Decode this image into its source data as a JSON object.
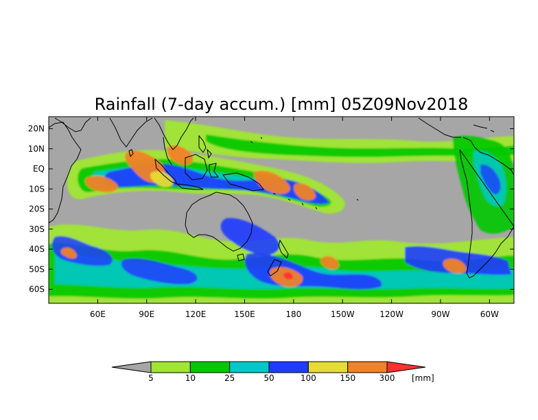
{
  "title": "Rainfall (7-day accum.) [mm] 05Z09Nov2018",
  "map": {
    "ocean_color": "#a6a6a6",
    "coast_color": "#000000",
    "lon_ticks": [
      "60E",
      "90E",
      "120E",
      "150E",
      "180",
      "150W",
      "120W",
      "90W",
      "60W"
    ],
    "lat_ticks": [
      "20N",
      "10N",
      "EQ",
      "10S",
      "20S",
      "30S",
      "40S",
      "50S",
      "60S"
    ],
    "lon_values": [
      60,
      90,
      120,
      150,
      180,
      210,
      240,
      270,
      300
    ],
    "lat_values": [
      20,
      10,
      0,
      -10,
      -20,
      -30,
      -40,
      -50,
      -60
    ],
    "lon_range": [
      30,
      315
    ],
    "lat_range": [
      -67,
      26
    ]
  },
  "legend": {
    "unit": "[mm]",
    "under_color": "#a6a6a6",
    "over_color": "#ff3030",
    "bins": [
      {
        "color": "#a0e632"
      },
      {
        "color": "#00c800"
      },
      {
        "color": "#00c8c8"
      },
      {
        "color": "#1e3cff"
      },
      {
        "color": "#e6dc32"
      },
      {
        "color": "#f08228"
      }
    ],
    "labels": [
      "5",
      "10",
      "25",
      "50",
      "100",
      "150",
      "300"
    ]
  }
}
